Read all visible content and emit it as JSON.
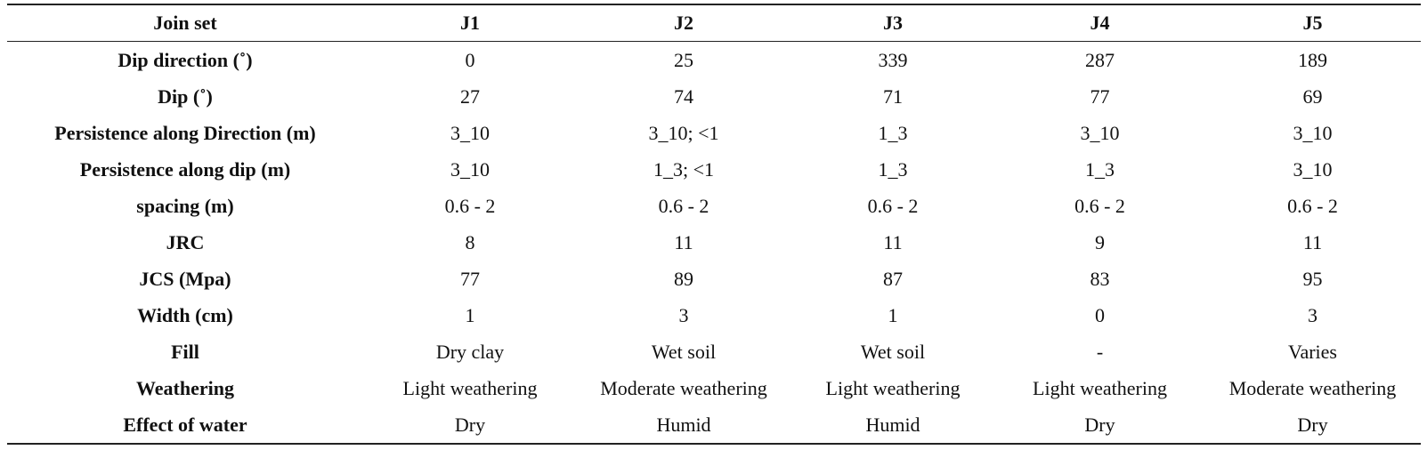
{
  "table": {
    "headers": [
      "Join set",
      "J1",
      "J2",
      "J3",
      "J4",
      "J5"
    ],
    "rows": [
      {
        "label": "Dip direction (˚)",
        "values": [
          "0",
          "25",
          "339",
          "287",
          "189"
        ]
      },
      {
        "label": "Dip (˚)",
        "values": [
          "27",
          "74",
          "71",
          "77",
          "69"
        ]
      },
      {
        "label": "Persistence along Direction (m)",
        "values": [
          "3_10",
          "3_10; <1",
          "1_3",
          "3_10",
          "3_10"
        ]
      },
      {
        "label": "Persistence along dip (m)",
        "values": [
          "3_10",
          "1_3; <1",
          "1_3",
          "1_3",
          "3_10"
        ]
      },
      {
        "label": "spacing (m)",
        "values": [
          "0.6 - 2",
          "0.6 - 2",
          "0.6 - 2",
          "0.6 - 2",
          "0.6 - 2"
        ]
      },
      {
        "label": "JRC",
        "values": [
          "8",
          "11",
          "11",
          "9",
          "11"
        ]
      },
      {
        "label": "JCS (Mpa)",
        "values": [
          "77",
          "89",
          "87",
          "83",
          "95"
        ]
      },
      {
        "label": "Width (cm)",
        "values": [
          "1",
          "3",
          "1",
          "0",
          "3"
        ]
      },
      {
        "label": "Fill",
        "values": [
          "Dry clay",
          "Wet soil",
          "Wet soil",
          "-",
          "Varies"
        ]
      },
      {
        "label": "Weathering",
        "values": [
          "Light weathering",
          "Moderate weathering",
          "Light weathering",
          "Light weathering",
          "Moderate weathering"
        ]
      },
      {
        "label": "Effect of water",
        "values": [
          "Dry",
          "Humid",
          "Humid",
          "Dry",
          "Dry"
        ]
      }
    ]
  }
}
